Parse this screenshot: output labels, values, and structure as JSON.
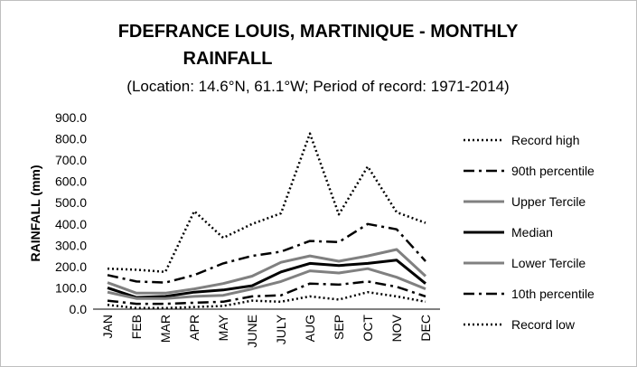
{
  "chart_data": {
    "type": "line",
    "title_line1": "FDEFRANCE LOUIS, MARTINIQUE - MONTHLY",
    "title_line2": "RAINFALL",
    "subtitle": "(Location: 14.6°N, 61.1°W; Period of record: 1971-2014)",
    "ylabel": "RAINFALL (mm)",
    "ylim": [
      0,
      900
    ],
    "yticks": [
      "0.0",
      "100.0",
      "200.0",
      "300.0",
      "400.0",
      "500.0",
      "600.0",
      "700.0",
      "800.0",
      "900.0"
    ],
    "categories": [
      "JAN",
      "FEB",
      "MAR",
      "APR",
      "MAY",
      "JUNE",
      "JULY",
      "AUG",
      "SEP",
      "OCT",
      "NOV",
      "DEC"
    ],
    "legend_position": "right",
    "series": [
      {
        "name": "Record high",
        "color": "#000000",
        "style": "dotted",
        "values": [
          190,
          185,
          175,
          460,
          335,
          400,
          450,
          825,
          445,
          670,
          455,
          405
        ]
      },
      {
        "name": "90th percentile",
        "color": "#000000",
        "style": "dashdot",
        "values": [
          160,
          130,
          125,
          160,
          215,
          250,
          270,
          320,
          315,
          400,
          375,
          225
        ]
      },
      {
        "name": "Upper Tercile",
        "color": "#808080",
        "style": "solid",
        "values": [
          125,
          75,
          75,
          95,
          120,
          155,
          220,
          250,
          225,
          250,
          280,
          155
        ]
      },
      {
        "name": "Median",
        "color": "#000000",
        "style": "solid",
        "values": [
          100,
          55,
          60,
          80,
          90,
          110,
          175,
          215,
          205,
          215,
          230,
          120
        ]
      },
      {
        "name": "Lower Tercile",
        "color": "#808080",
        "style": "solid",
        "values": [
          80,
          50,
          50,
          60,
          65,
          95,
          130,
          180,
          170,
          190,
          150,
          95
        ]
      },
      {
        "name": "10th percentile",
        "color": "#000000",
        "style": "dashdot",
        "values": [
          40,
          25,
          25,
          30,
          35,
          60,
          65,
          120,
          115,
          130,
          105,
          60
        ]
      },
      {
        "name": "Record low",
        "color": "#000000",
        "style": "dotted",
        "values": [
          20,
          5,
          5,
          10,
          15,
          40,
          35,
          60,
          45,
          80,
          60,
          35
        ]
      }
    ]
  }
}
